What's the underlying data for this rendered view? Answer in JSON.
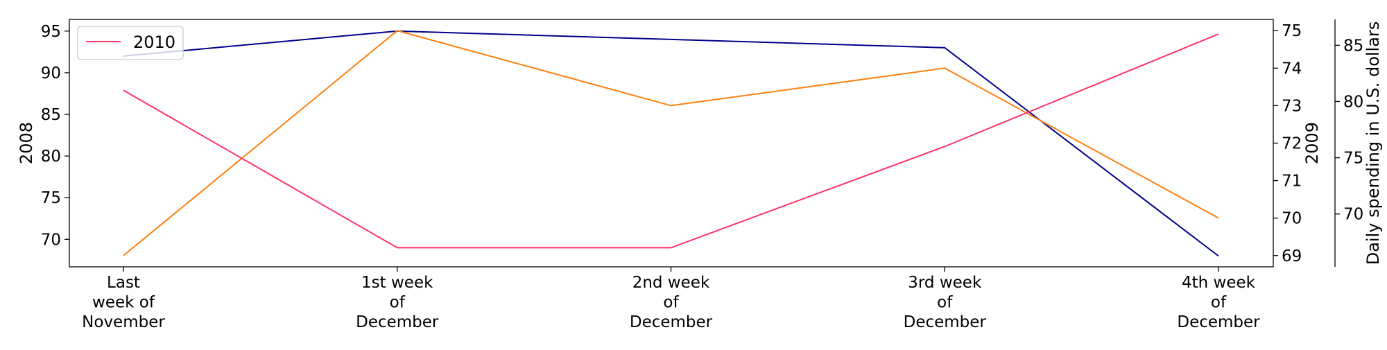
{
  "chart_data": {
    "type": "line",
    "categories": [
      [
        "Last",
        "week of",
        "November"
      ],
      [
        "1st week",
        "of",
        "December"
      ],
      [
        "2nd week",
        "of",
        "December"
      ],
      [
        "3rd week",
        "of",
        "December"
      ],
      [
        "4th week",
        "of",
        "December"
      ]
    ],
    "series": [
      {
        "name": "",
        "axis_label": "2008",
        "color": "#00008b",
        "values": [
          92,
          95,
          94,
          93,
          68
        ],
        "ylim": [
          66.7,
          96.4
        ],
        "yticks": [
          70,
          75,
          80,
          85,
          90,
          95
        ]
      },
      {
        "name": "",
        "axis_label": "2009",
        "color": "#ff7f0e",
        "values": [
          69,
          75,
          73,
          74,
          70
        ],
        "ylim": [
          68.7,
          75.3
        ],
        "yticks": [
          69,
          70,
          71,
          72,
          73,
          74,
          75
        ]
      },
      {
        "name": "2010",
        "axis_label": "Daily spending in U.S. dollars",
        "color": "#ff3366",
        "values": [
          81,
          67,
          67,
          76,
          86
        ],
        "ylim": [
          65.3,
          87.3
        ],
        "yticks": [
          70,
          75,
          80,
          85
        ]
      }
    ],
    "legend": {
      "entries": [
        "2010"
      ],
      "position": "top-left"
    },
    "grid": false
  }
}
